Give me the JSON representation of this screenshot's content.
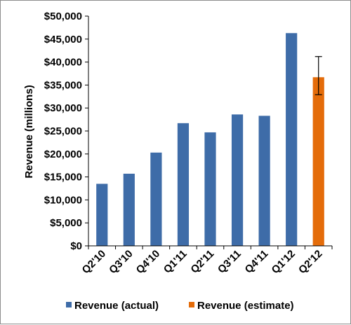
{
  "chart_data": {
    "type": "bar",
    "title": "",
    "xlabel": "",
    "ylabel": "Revenue (millions)",
    "ylim": [
      0,
      50000
    ],
    "yticks": [
      0,
      5000,
      10000,
      15000,
      20000,
      25000,
      30000,
      35000,
      40000,
      45000,
      50000
    ],
    "ytick_labels": [
      "$0",
      "$5,000",
      "$10,000",
      "$15,000",
      "$20,000",
      "$25,000",
      "$30,000",
      "$35,000",
      "$40,000",
      "$45,000",
      "$50,000"
    ],
    "categories": [
      "Q2'10",
      "Q3'10",
      "Q4'10",
      "Q1'11",
      "Q2'11",
      "Q3'11",
      "Q4'11",
      "Q1'12",
      "Q2'12"
    ],
    "series": [
      {
        "name": "Revenue (actual)",
        "color": "#3e6ca8",
        "values": [
          13500,
          15700,
          20300,
          26700,
          24700,
          28600,
          28300,
          46300,
          null
        ]
      },
      {
        "name": "Revenue (estimate)",
        "color": "#e46c0a",
        "values": [
          null,
          null,
          null,
          null,
          null,
          null,
          null,
          null,
          36700
        ],
        "error": [
          null,
          null,
          null,
          null,
          null,
          null,
          null,
          null,
          [
            32900,
            41200
          ]
        ]
      }
    ],
    "grid": false,
    "legend_position": "bottom"
  }
}
